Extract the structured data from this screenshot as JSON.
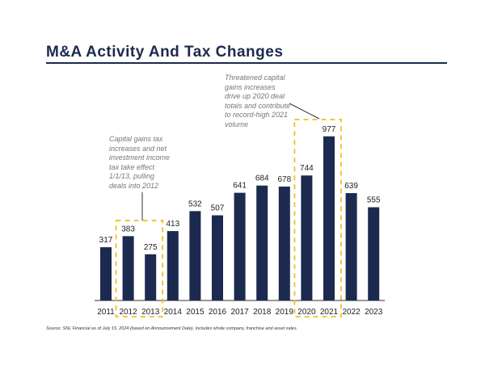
{
  "chart_data": {
    "type": "bar",
    "title": "M&A Activity And Tax Changes",
    "categories": [
      "2011",
      "2012",
      "2013",
      "2014",
      "2015",
      "2016",
      "2017",
      "2018",
      "2019",
      "2020",
      "2021",
      "2022",
      "2023"
    ],
    "values": [
      317,
      383,
      275,
      413,
      532,
      507,
      641,
      684,
      678,
      744,
      977,
      639,
      555
    ],
    "bar_color": "#1b2a4e",
    "highlight_color": "#f0c020",
    "highlights": [
      [
        "2012",
        "2013"
      ],
      [
        "2020",
        "2021"
      ]
    ],
    "annotations": [
      {
        "text": "Capital gains tax increases and net investment income tax take effect 1/1/13, pulling deals into 2012",
        "target": [
          "2012",
          "2013"
        ]
      },
      {
        "text": "Threatened capital gains increases drive up 2020 deal totals and contribute to record-high 2021 volume",
        "target": [
          "2020",
          "2021"
        ]
      }
    ],
    "source": "Source: SNL Financial as of July 15, 2024 (based on Announcement Date). Includes whole company, franchise and asset sales.",
    "grid": false,
    "legend": "none"
  }
}
